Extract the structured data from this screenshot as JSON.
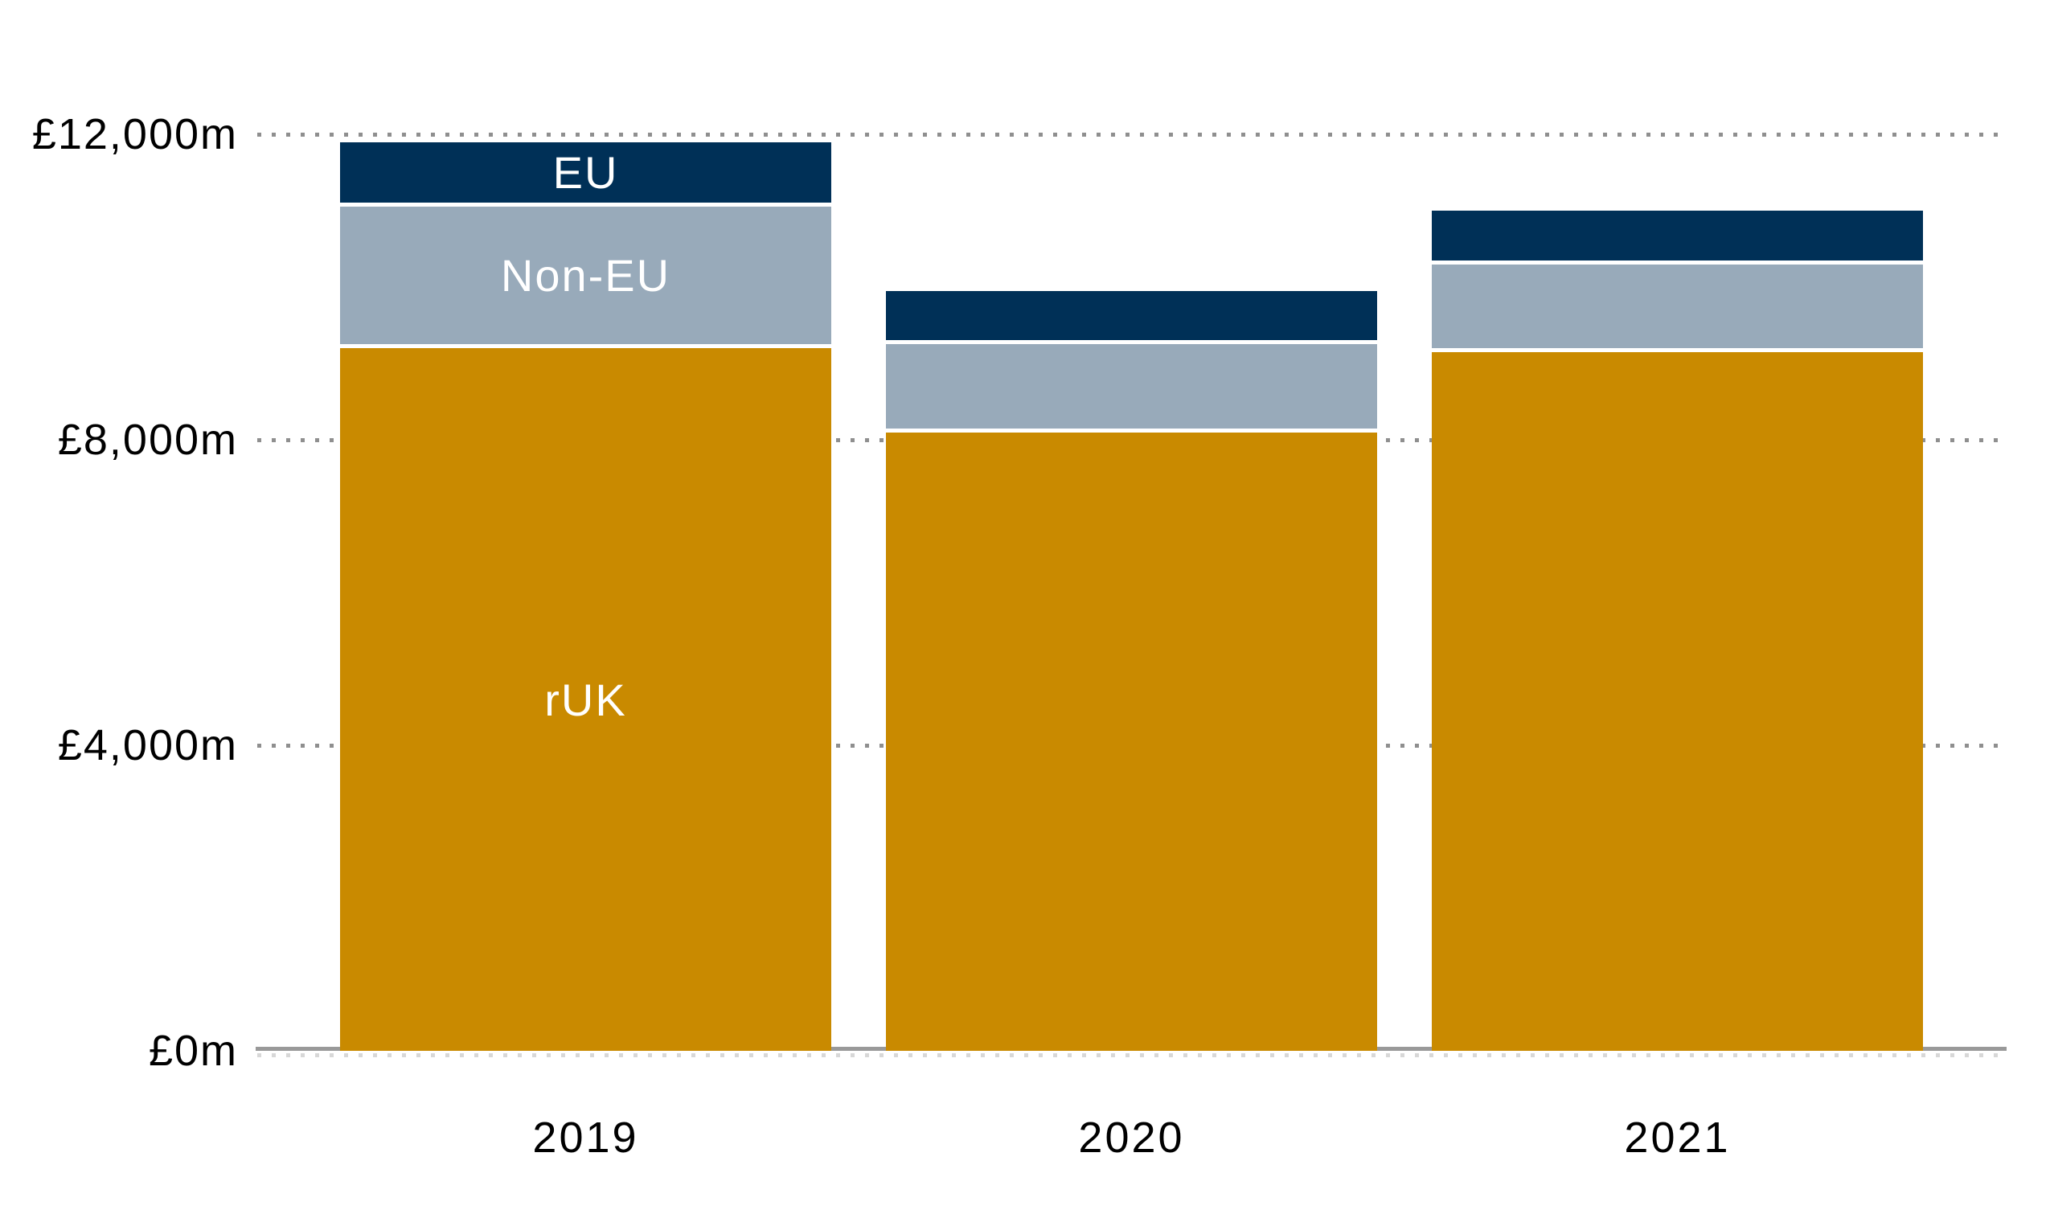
{
  "chart_data": {
    "type": "bar",
    "stacked": true,
    "title": "",
    "xlabel": "",
    "ylabel": "",
    "unit": "£m",
    "categories": [
      "2019",
      "2020",
      "2021"
    ],
    "series": [
      {
        "name": "rUK",
        "color": "#c98a00",
        "values": [
          9200,
          8100,
          9150
        ]
      },
      {
        "name": "Non-EU",
        "color": "#98aaba",
        "values": [
          1850,
          1150,
          1150
        ]
      },
      {
        "name": "EU",
        "color": "#003057",
        "values": [
          850,
          700,
          700
        ]
      }
    ],
    "totals": [
      11900,
      9950,
      11000
    ],
    "y_ticks": [
      {
        "value": 0,
        "label": "£0m"
      },
      {
        "value": 4000,
        "label": "£4,000m"
      },
      {
        "value": 8000,
        "label": "£8,000m"
      },
      {
        "value": 12000,
        "label": "£12,000m"
      }
    ],
    "ylim": [
      0,
      12400
    ],
    "grid": "dotted horizontal gridlines, solid gray baseline at zero",
    "legend": "none — series labels drawn inside first bar",
    "segment_label_bar": "2019",
    "colors": {
      "background": "#ffffff",
      "grid_dots": "#8f8f8f",
      "baseline": "#999999",
      "baseline_dots_light": "#d8d8d8",
      "tick_text": "#000000",
      "segment_label_text": "#ffffff",
      "separator": "#ffffff"
    }
  }
}
